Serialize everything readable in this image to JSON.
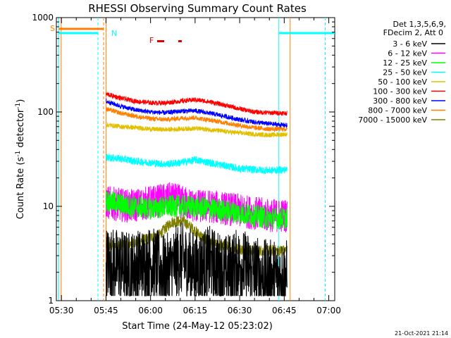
{
  "chart_data": {
    "type": "line",
    "title": "RHESSI Observing Summary Count Rates",
    "xlabel": "Start Time (24-May-12 05:23:02)",
    "ylabel_main": "Count Rate (s",
    "ylabel_sup1": "-1",
    "ylabel_mid": " detector",
    "ylabel_sup2": "-1",
    "ylabel_end": ")",
    "yscale": "log",
    "ylim": [
      1,
      1000
    ],
    "xlim_minutes": [
      5.3,
      99
    ],
    "x_tick_labels": [
      "05:30",
      "05:45",
      "06:00",
      "06:15",
      "06:30",
      "06:45",
      "07:00"
    ],
    "x_tick_minutes": [
      7,
      22,
      37,
      52,
      67,
      82,
      97
    ],
    "y_tick_labels": [
      "1",
      "10",
      "100",
      "1000"
    ],
    "y_tick_values": [
      1,
      10,
      100,
      1000
    ],
    "legend_header": [
      "Det 1,3,5,6,9,",
      "FDecim 2, Att 0"
    ],
    "series": [
      {
        "name": "3 - 6 keV",
        "color": "#000000",
        "points": [
          [
            22,
            2.5
          ],
          [
            30,
            2.2
          ],
          [
            37,
            2.5
          ],
          [
            42,
            2.0
          ],
          [
            47,
            2.8
          ],
          [
            52,
            2.2
          ],
          [
            57,
            2.5
          ],
          [
            62,
            2.0
          ],
          [
            67,
            2.4
          ],
          [
            72,
            2.0
          ],
          [
            75,
            1.8
          ],
          [
            80,
            1.8
          ],
          [
            83,
            1.8
          ]
        ]
      },
      {
        "name": "6 - 12 keV",
        "color": "#ff00ff",
        "points": [
          [
            22,
            11
          ],
          [
            30,
            10
          ],
          [
            37,
            11
          ],
          [
            44,
            12
          ],
          [
            48,
            11
          ],
          [
            52,
            10
          ],
          [
            57,
            10
          ],
          [
            62,
            9.5
          ],
          [
            67,
            9
          ],
          [
            72,
            8.5
          ],
          [
            77,
            8
          ],
          [
            83,
            8
          ]
        ]
      },
      {
        "name": "12 - 25 keV",
        "color": "#00ff00",
        "points": [
          [
            22,
            11.5
          ],
          [
            30,
            10
          ],
          [
            37,
            9.5
          ],
          [
            44,
            10
          ],
          [
            50,
            10
          ],
          [
            57,
            9.5
          ],
          [
            62,
            9
          ],
          [
            67,
            8.5
          ],
          [
            72,
            8
          ],
          [
            77,
            7.5
          ],
          [
            83,
            7.5
          ]
        ]
      },
      {
        "name": "25 - 50 keV",
        "color": "#00ffff",
        "points": [
          [
            22,
            33
          ],
          [
            27,
            32
          ],
          [
            32,
            30
          ],
          [
            37,
            29
          ],
          [
            42,
            28
          ],
          [
            47,
            29
          ],
          [
            52,
            31
          ],
          [
            57,
            29
          ],
          [
            62,
            27
          ],
          [
            67,
            25
          ],
          [
            72,
            24.5
          ],
          [
            77,
            24
          ],
          [
            83,
            24.5
          ]
        ]
      },
      {
        "name": "50 - 100 keV",
        "color": "#e0c000",
        "points": [
          [
            22,
            73
          ],
          [
            27,
            70
          ],
          [
            32,
            68
          ],
          [
            37,
            66
          ],
          [
            42,
            65
          ],
          [
            47,
            66
          ],
          [
            52,
            67
          ],
          [
            57,
            65
          ],
          [
            62,
            62
          ],
          [
            67,
            60
          ],
          [
            72,
            58
          ],
          [
            77,
            57
          ],
          [
            83,
            58
          ]
        ]
      },
      {
        "name": "100 - 300 keV",
        "color": "#ff0000",
        "points": [
          [
            22,
            155
          ],
          [
            27,
            140
          ],
          [
            32,
            130
          ],
          [
            37,
            125
          ],
          [
            42,
            125
          ],
          [
            47,
            130
          ],
          [
            52,
            135
          ],
          [
            57,
            128
          ],
          [
            62,
            118
          ],
          [
            67,
            108
          ],
          [
            72,
            100
          ],
          [
            77,
            98
          ],
          [
            83,
            97
          ]
        ]
      },
      {
        "name": "300 - 800 keV",
        "color": "#0000ff",
        "points": [
          [
            22,
            130
          ],
          [
            27,
            115
          ],
          [
            32,
            105
          ],
          [
            37,
            100
          ],
          [
            42,
            98
          ],
          [
            47,
            102
          ],
          [
            52,
            103
          ],
          [
            57,
            97
          ],
          [
            62,
            90
          ],
          [
            67,
            83
          ],
          [
            72,
            78
          ],
          [
            77,
            75
          ],
          [
            83,
            72
          ]
        ]
      },
      {
        "name": "800 - 7000 keV",
        "color": "#ff8000",
        "points": [
          [
            22,
            108
          ],
          [
            27,
            97
          ],
          [
            32,
            90
          ],
          [
            37,
            85
          ],
          [
            42,
            83
          ],
          [
            47,
            86
          ],
          [
            52,
            87
          ],
          [
            57,
            82
          ],
          [
            62,
            77
          ],
          [
            67,
            72
          ],
          [
            72,
            68
          ],
          [
            77,
            66
          ],
          [
            83,
            66
          ]
        ]
      },
      {
        "name": "7000 - 15000 keV",
        "color": "#808000",
        "points": [
          [
            22,
            3.8
          ],
          [
            30,
            4
          ],
          [
            36,
            4.5
          ],
          [
            40,
            5
          ],
          [
            44,
            6.8
          ],
          [
            48,
            7
          ],
          [
            52,
            5.5
          ],
          [
            57,
            4
          ],
          [
            62,
            3.8
          ],
          [
            67,
            3.5
          ],
          [
            72,
            3.4
          ],
          [
            77,
            3.4
          ],
          [
            83,
            3.4
          ]
        ]
      }
    ],
    "flags": [
      {
        "label": "S",
        "color": "#ff8000"
      },
      {
        "label": "N",
        "color": "#00ffff"
      },
      {
        "label": "F",
        "color": "#e00000"
      }
    ],
    "footer_date": "21-Oct-2021 21:14"
  }
}
